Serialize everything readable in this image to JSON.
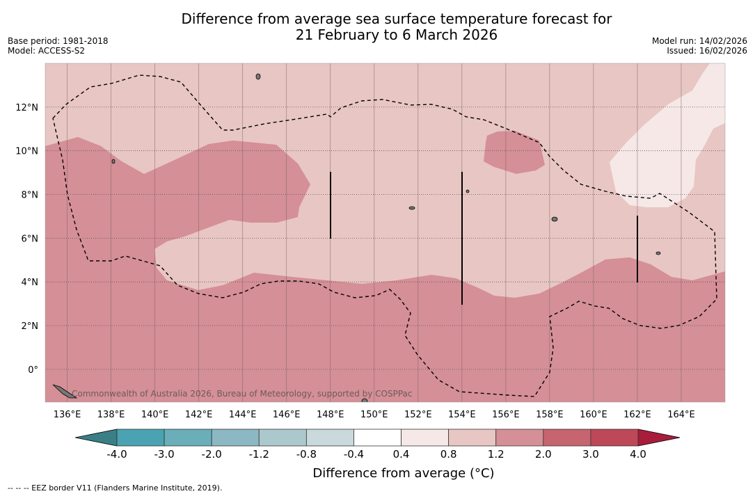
{
  "header": {
    "title_line1": "Difference from average sea surface temperature forecast for",
    "title_line2": "21 February to 6 March 2026",
    "base_period": "Base period: 1981-2018",
    "model": "Model: ACCESS-S2",
    "model_run": "Model run: 14/02/2026",
    "issued": "Issued: 16/02/2026"
  },
  "watermark": "Commonwealth of Australia 2026, Bureau of Meteorology, supported by COSPPac",
  "footnote": "--  --  -- EEZ border V11 (Flanders Marine Institute, 2019).",
  "chart_data": {
    "type": "heatmap",
    "title": "Difference from average sea surface temperature forecast for 21 February to 6 March 2026",
    "x_ticks": [
      "136°E",
      "138°E",
      "140°E",
      "142°E",
      "144°E",
      "146°E",
      "148°E",
      "150°E",
      "152°E",
      "154°E",
      "156°E",
      "158°E",
      "160°E",
      "162°E",
      "164°E"
    ],
    "y_ticks": [
      "12°N",
      "10°N",
      "8°N",
      "6°N",
      "4°N",
      "2°N",
      "0°"
    ],
    "x_tick_values": [
      136,
      138,
      140,
      142,
      144,
      146,
      148,
      150,
      152,
      154,
      156,
      158,
      160,
      162,
      164
    ],
    "y_tick_values": [
      12,
      10,
      8,
      6,
      4,
      2,
      0
    ],
    "xlim": [
      135,
      166
    ],
    "ylim": [
      -1.5,
      14
    ],
    "grid": true,
    "colorbar": {
      "label": "Difference from average (°C)",
      "ticks": [
        "-4.0",
        "-3.0",
        "-2.0",
        "-1.2",
        "-0.8",
        "-0.4",
        "0.4",
        "0.8",
        "1.2",
        "2.0",
        "3.0",
        "4.0"
      ],
      "bin_colors": [
        "#49a3b2",
        "#6aaeba",
        "#8bb8c3",
        "#abc8cd",
        "#c9d9dc",
        "#ffffff",
        "#f5e8e7",
        "#e8c6c3",
        "#d58f96",
        "#c6646f",
        "#bd4858"
      ],
      "under_color": "#3a7f86",
      "over_color": "#a91d3c"
    },
    "regions": [
      {
        "range": "1.2 to 2.0",
        "description_color": "#d58f96"
      },
      {
        "range": "0.8 to 1.2",
        "description_color": "#e8c6c3"
      },
      {
        "range": "0.4 to 0.8",
        "description_color": "#f5e8e7"
      }
    ]
  }
}
